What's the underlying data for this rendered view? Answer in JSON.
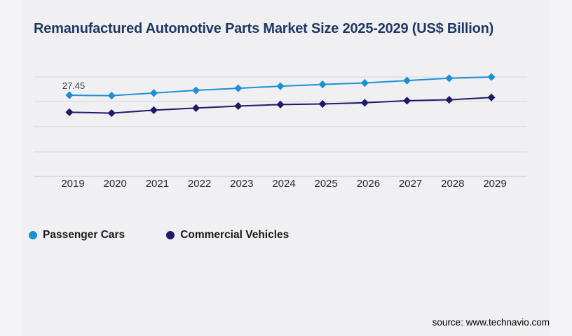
{
  "title": "Remanufactured Automotive Parts Market Size 2025-2029 (US$ Billion)",
  "chart_data": {
    "type": "line",
    "x": [
      2019,
      2020,
      2021,
      2022,
      2023,
      2024,
      2025,
      2026,
      2027,
      2028,
      2029
    ],
    "series": [
      {
        "name": "Passenger Cars",
        "color": "#1e8fd5",
        "marker": "diamond",
        "values": [
          27.45,
          27.3,
          28.2,
          29.1,
          29.8,
          30.5,
          31.1,
          31.6,
          32.4,
          33.2,
          33.6
        ]
      },
      {
        "name": "Commercial Vehicles",
        "color": "#1d1a68",
        "marker": "diamond",
        "values": [
          21.7,
          21.4,
          22.4,
          23.1,
          23.8,
          24.3,
          24.5,
          24.9,
          25.6,
          25.9,
          26.7
        ]
      }
    ],
    "ylim": [
      0,
      40
    ],
    "xlabel": "",
    "ylabel": "",
    "grid": "horizontal",
    "y_axis_labels_visible": false,
    "legend_position": "bottom-left",
    "annotations": [
      {
        "series": "Passenger Cars",
        "x": 2019,
        "text": "27.45"
      }
    ]
  },
  "legend": {
    "items": [
      {
        "label": "Passenger Cars",
        "color": "#1e8fd5"
      },
      {
        "label": "Commercial Vehicles",
        "color": "#1d1a68"
      }
    ]
  },
  "source": "source: www.technavio.com",
  "colors": {
    "title": "#1f3864",
    "background": "#f4f4f6",
    "card": "#f0f0f2",
    "gridline": "#d6d6d8",
    "axis": "#c6c6c8",
    "tick_label": "#2b2b2b",
    "annotation": "#3c3c3c",
    "legend_text": "#1a1a1a",
    "source_text": "#000000"
  }
}
